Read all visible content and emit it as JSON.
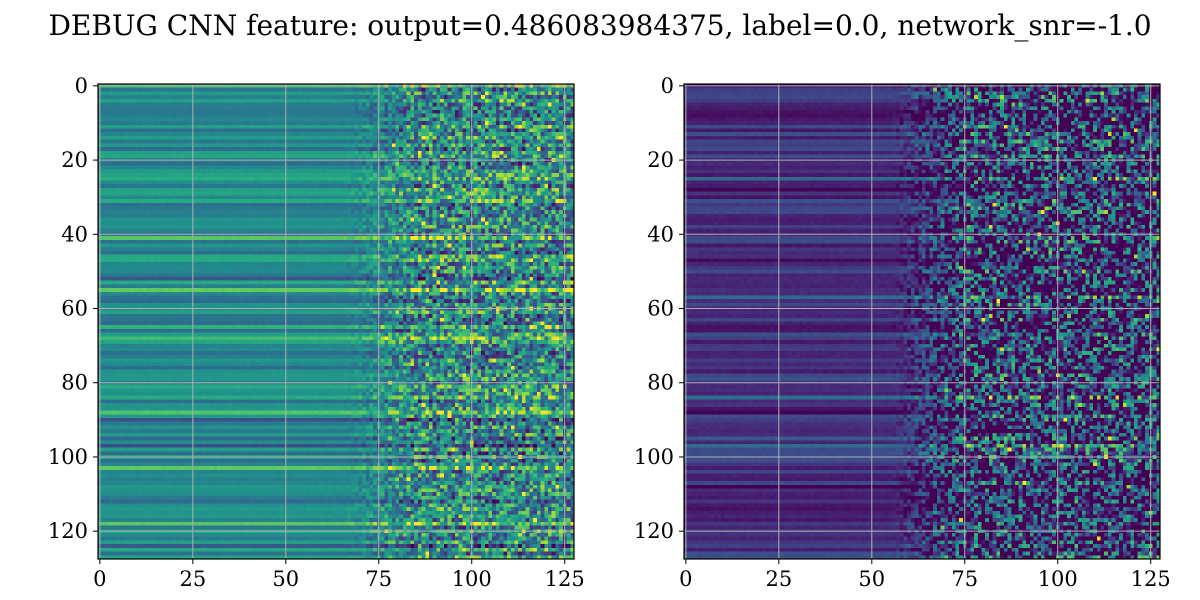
{
  "chart_data": {
    "title": "DEBUG CNN feature: output=0.486083984375, label=0.0, network_snr=-1.0",
    "panels": [
      {
        "type": "heatmap",
        "colormap": "viridis",
        "rows": 128,
        "cols": 128,
        "xlim": [
          -0.5,
          127.5
        ],
        "ylim": [
          127.5,
          -0.5
        ],
        "xticks": [
          "0",
          "25",
          "50",
          "75",
          "100",
          "125"
        ],
        "yticks": [
          "0",
          "20",
          "40",
          "60",
          "80",
          "100",
          "120"
        ],
        "grid": true,
        "value_profile": {
          "row_base_range": [
            0.35,
            0.62
          ],
          "noise_onset_col": 75,
          "noise_amplitude": 0.35,
          "bright_rows": [
            0,
            25,
            31,
            41,
            55,
            61,
            65,
            68,
            88,
            100,
            103,
            118
          ],
          "dark_rows": [
            10,
            15,
            33,
            48,
            52,
            62,
            90,
            97,
            105,
            112,
            124
          ]
        }
      },
      {
        "type": "heatmap",
        "colormap": "viridis",
        "rows": 128,
        "cols": 128,
        "xlim": [
          -0.5,
          127.5
        ],
        "ylim": [
          127.5,
          -0.5
        ],
        "xticks": [
          "0",
          "25",
          "50",
          "75",
          "100",
          "125"
        ],
        "yticks": [
          "0",
          "20",
          "40",
          "60",
          "80",
          "100",
          "120"
        ],
        "grid": true,
        "value_profile": {
          "row_base_range": [
            0.05,
            0.25
          ],
          "noise_onset_col": 65,
          "noise_amplitude": 0.55,
          "bright_rows": [
            3,
            25,
            34,
            41,
            57,
            84,
            95,
            97,
            126
          ],
          "dark_rows": [
            8,
            18,
            28,
            47,
            66,
            72,
            88,
            108,
            115
          ]
        }
      }
    ]
  }
}
